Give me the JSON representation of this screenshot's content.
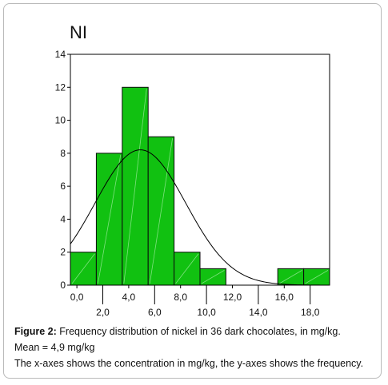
{
  "chart_data": {
    "type": "bar",
    "title": "NI",
    "bin_width": 2,
    "bins": [
      {
        "start": -0.5,
        "end": 1.5,
        "value": 2
      },
      {
        "start": 1.5,
        "end": 3.5,
        "value": 8
      },
      {
        "start": 3.5,
        "end": 5.5,
        "value": 12
      },
      {
        "start": 5.5,
        "end": 7.5,
        "value": 9
      },
      {
        "start": 7.5,
        "end": 9.5,
        "value": 2
      },
      {
        "start": 9.5,
        "end": 11.5,
        "value": 1
      },
      {
        "start": 11.5,
        "end": 13.5,
        "value": 0
      },
      {
        "start": 13.5,
        "end": 15.5,
        "value": 0
      },
      {
        "start": 15.5,
        "end": 17.5,
        "value": 1
      },
      {
        "start": 17.5,
        "end": 19.5,
        "value": 1
      }
    ],
    "normal_curve": {
      "mean": 4.9,
      "sd": 3.5,
      "n": 36
    },
    "xlim": [
      -0.5,
      19.5
    ],
    "ylim": [
      0,
      14
    ],
    "y_ticks": [
      "0",
      "2",
      "4",
      "6",
      "8",
      "10",
      "12",
      "14"
    ],
    "x_ticks_upper": [
      "0,0",
      "4,0",
      "8,0",
      "12,0",
      "16,0"
    ],
    "x_ticks_lower": [
      "2,0",
      "6,0",
      "10,0",
      "14,0",
      "18,0"
    ],
    "colors": {
      "bar_fill": "#11c111",
      "bar_stroke": "#0b0b0b",
      "curve": "#000000"
    }
  },
  "caption": {
    "figure_label": "Figure 2:",
    "line1": " Frequency distribution of nickel in 36 dark chocolates, in mg/kg.",
    "line2": "Mean = 4,9 mg/kg",
    "line3": "The x-axes shows the concentration in mg/kg, the y-axes shows the frequency."
  }
}
